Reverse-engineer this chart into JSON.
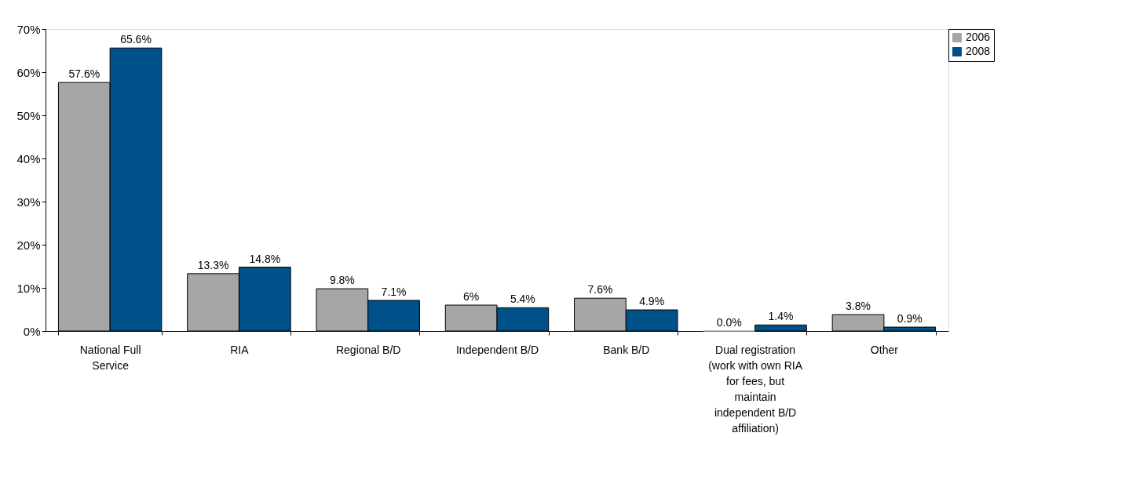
{
  "chart_data": {
    "type": "bar",
    "categories": [
      "National Full Service",
      "RIA",
      "Regional B/D",
      "Independent B/D",
      "Bank B/D",
      "Dual registration (work with own RIA for fees, but maintain independent B/D affiliation)",
      "Other"
    ],
    "series": [
      {
        "name": "2006",
        "color": "#a6a6a6",
        "values": [
          57.6,
          13.3,
          9.8,
          6,
          7.6,
          0.0,
          3.8
        ],
        "value_labels": [
          "57.6%",
          "13.3%",
          "9.8%",
          "6%",
          "7.6%",
          "0.0%",
          "3.8%"
        ]
      },
      {
        "name": "2008",
        "color": "#00508a",
        "values": [
          65.6,
          14.8,
          7.1,
          5.4,
          4.9,
          1.4,
          0.9
        ],
        "value_labels": [
          "65.6%",
          "14.8%",
          "7.1%",
          "5.4%",
          "4.9%",
          "1.4%",
          "0.9%"
        ]
      }
    ],
    "ylim": [
      0,
      70
    ],
    "yticks": [
      {
        "value": 0,
        "label": "0%"
      },
      {
        "value": 10,
        "label": "10%"
      },
      {
        "value": 20,
        "label": "20%"
      },
      {
        "value": 30,
        "label": "30%"
      },
      {
        "value": 40,
        "label": "40%"
      },
      {
        "value": 50,
        "label": "50%"
      },
      {
        "value": 60,
        "label": "60%"
      },
      {
        "value": 70,
        "label": "70%"
      }
    ],
    "grid": false,
    "legend": "right"
  }
}
